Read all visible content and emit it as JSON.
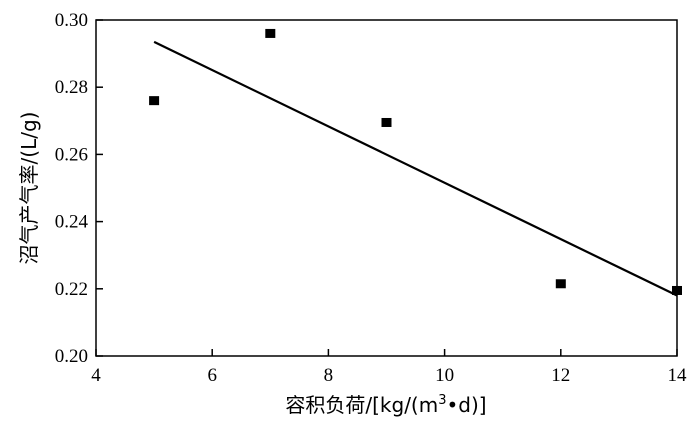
{
  "chart_data": {
    "type": "scatter",
    "title": "",
    "xlabel_main": "容积负荷/[kg/(m",
    "xlabel_sup": "3",
    "xlabel_tail": "•d)]",
    "ylabel": "沼气产气率/(L/g)",
    "xlim": [
      4,
      14
    ],
    "ylim": [
      0.2,
      0.3
    ],
    "xticks": [
      4,
      6,
      8,
      10,
      12,
      14
    ],
    "xtick_labels": [
      "4",
      "6",
      "8",
      "10",
      "12",
      "14"
    ],
    "yticks": [
      0.2,
      0.22,
      0.24,
      0.26,
      0.28,
      0.3
    ],
    "ytick_labels": [
      "0.20",
      "0.22",
      "0.24",
      "0.26",
      "0.28",
      "0.30"
    ],
    "series": [
      {
        "x": [
          5,
          7,
          9,
          12,
          14
        ],
        "y": [
          0.276,
          0.296,
          0.2695,
          0.2215,
          0.2195
        ]
      }
    ],
    "trendline": {
      "x": [
        5,
        14
      ],
      "y": [
        0.2935,
        0.218
      ]
    },
    "grid": false,
    "legend": "none"
  }
}
